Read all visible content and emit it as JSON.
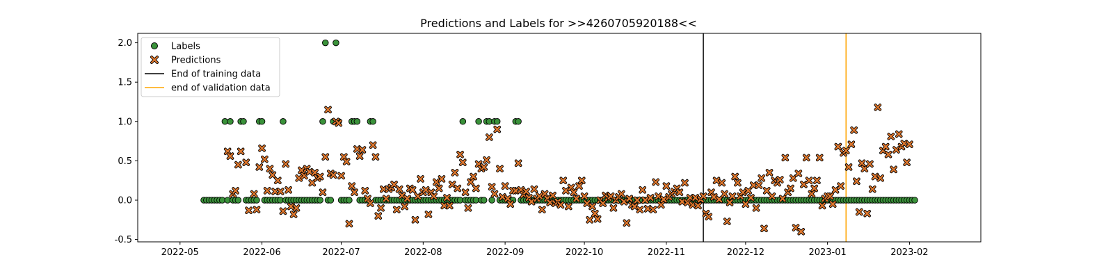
{
  "chart_data": {
    "type": "scatter",
    "title": "Predictions and Labels for >>4260705920188<<",
    "xlabel": "",
    "ylabel": "",
    "x_range": [
      "2022-04-15",
      "2023-02-28"
    ],
    "ylim": [
      -0.53,
      2.12
    ],
    "x_ticks": [
      "2022-05",
      "2022-06",
      "2022-07",
      "2022-08",
      "2022-09",
      "2022-10",
      "2022-11",
      "2022-12",
      "2023-01",
      "2023-02"
    ],
    "y_ticks": [
      -0.5,
      0.0,
      0.5,
      1.0,
      1.5,
      2.0
    ],
    "grid": false,
    "legend_position": "top-left",
    "colors": {
      "labels": "#3a923a",
      "predictions": "#e0782e",
      "training_line": "#000000",
      "validation_line": "#ffa500"
    },
    "legend": [
      {
        "label": "Labels",
        "marker": "circle",
        "color": "#3a923a"
      },
      {
        "label": "Predictions",
        "marker": "x",
        "color": "#e0782e"
      },
      {
        "label": "End of training data",
        "marker": "line",
        "color": "#000000"
      },
      {
        "label": "end of validation data",
        "marker": "line",
        "color": "#ffa500"
      }
    ],
    "vlines": [
      {
        "name": "End of training data",
        "x": "2022-11-15"
      },
      {
        "name": "end of validation data",
        "x": "2023-01-08"
      }
    ],
    "label_start": "2022-05-10",
    "label_end": "2023-02-03",
    "label_one_dates": [
      "2022-05-18",
      "2022-05-20",
      "2022-05-24",
      "2022-05-25",
      "2022-05-31",
      "2022-06-01",
      "2022-06-09",
      "2022-06-24",
      "2022-06-28",
      "2022-06-30",
      "2022-07-05",
      "2022-07-06",
      "2022-07-07",
      "2022-07-12",
      "2022-07-13",
      "2022-08-16",
      "2022-08-22",
      "2022-08-25",
      "2022-08-26",
      "2022-08-28",
      "2022-08-29",
      "2022-09-05",
      "2022-09-06"
    ],
    "label_two_dates": [
      "2022-06-25",
      "2022-06-29"
    ],
    "series": [
      {
        "name": "Predictions",
        "points": [
          [
            "2022-05-19",
            0.62
          ],
          [
            "2022-05-20",
            0.56
          ],
          [
            "2022-05-21",
            0.08
          ],
          [
            "2022-05-22",
            0.12
          ],
          [
            "2022-05-23",
            0.45
          ],
          [
            "2022-05-24",
            0.62
          ],
          [
            "2022-05-26",
            0.48
          ],
          [
            "2022-05-27",
            -0.13
          ],
          [
            "2022-05-29",
            0.08
          ],
          [
            "2022-05-30",
            -0.12
          ],
          [
            "2022-05-31",
            0.42
          ],
          [
            "2022-06-01",
            0.66
          ],
          [
            "2022-06-02",
            0.52
          ],
          [
            "2022-06-03",
            0.12
          ],
          [
            "2022-06-04",
            0.4
          ],
          [
            "2022-06-05",
            0.32
          ],
          [
            "2022-06-06",
            0.11
          ],
          [
            "2022-06-07",
            0.25
          ],
          [
            "2022-06-08",
            0.11
          ],
          [
            "2022-06-09",
            -0.14
          ],
          [
            "2022-06-10",
            0.46
          ],
          [
            "2022-06-11",
            0.13
          ],
          [
            "2022-06-12",
            -0.08
          ],
          [
            "2022-06-13",
            -0.18
          ],
          [
            "2022-06-14",
            -0.1
          ],
          [
            "2022-06-15",
            0.28
          ],
          [
            "2022-06-16",
            0.38
          ],
          [
            "2022-06-17",
            0.31
          ],
          [
            "2022-06-18",
            0.4
          ],
          [
            "2022-06-19",
            0.36
          ],
          [
            "2022-06-20",
            0.22
          ],
          [
            "2022-06-21",
            0.35
          ],
          [
            "2022-06-22",
            0.28
          ],
          [
            "2022-06-23",
            0.3
          ],
          [
            "2022-06-24",
            0.1
          ],
          [
            "2022-06-25",
            0.55
          ],
          [
            "2022-06-26",
            1.15
          ],
          [
            "2022-06-27",
            0.34
          ],
          [
            "2022-06-28",
            0.32
          ],
          [
            "2022-06-29",
            1.0
          ],
          [
            "2022-06-30",
            0.98
          ],
          [
            "2022-07-01",
            0.31
          ],
          [
            "2022-07-02",
            0.55
          ],
          [
            "2022-07-03",
            0.49
          ],
          [
            "2022-07-04",
            -0.3
          ],
          [
            "2022-07-05",
            0.18
          ],
          [
            "2022-07-06",
            0.1
          ],
          [
            "2022-07-07",
            0.65
          ],
          [
            "2022-07-08",
            0.56
          ],
          [
            "2022-07-09",
            0.64
          ],
          [
            "2022-07-10",
            0.12
          ],
          [
            "2022-07-11",
            0.02
          ],
          [
            "2022-07-12",
            -0.04
          ],
          [
            "2022-07-13",
            0.7
          ],
          [
            "2022-07-14",
            0.55
          ],
          [
            "2022-07-15",
            -0.2
          ],
          [
            "2022-07-16",
            -0.1
          ],
          [
            "2022-07-17",
            0.14
          ],
          [
            "2022-07-18",
            0.02
          ],
          [
            "2022-07-19",
            0.14
          ],
          [
            "2022-07-20",
            0.16
          ],
          [
            "2022-07-21",
            0.2
          ],
          [
            "2022-07-22",
            -0.12
          ],
          [
            "2022-07-23",
            0.14
          ],
          [
            "2022-07-24",
            0.06
          ],
          [
            "2022-07-25",
            -0.08
          ],
          [
            "2022-07-26",
            0.02
          ],
          [
            "2022-07-27",
            0.15
          ],
          [
            "2022-07-28",
            0.13
          ],
          [
            "2022-07-29",
            -0.25
          ],
          [
            "2022-07-30",
            0.05
          ],
          [
            "2022-07-31",
            0.27
          ],
          [
            "2022-08-01",
            0.1
          ],
          [
            "2022-08-02",
            0.13
          ],
          [
            "2022-08-03",
            -0.18
          ],
          [
            "2022-08-04",
            0.1
          ],
          [
            "2022-08-05",
            0.05
          ],
          [
            "2022-08-06",
            0.23
          ],
          [
            "2022-08-07",
            0.15
          ],
          [
            "2022-08-08",
            0.27
          ],
          [
            "2022-08-09",
            -0.07
          ],
          [
            "2022-08-10",
            0.03
          ],
          [
            "2022-08-11",
            -0.07
          ],
          [
            "2022-08-12",
            0.2
          ],
          [
            "2022-08-13",
            0.35
          ],
          [
            "2022-08-14",
            0.15
          ],
          [
            "2022-08-15",
            0.58
          ],
          [
            "2022-08-16",
            0.48
          ],
          [
            "2022-08-17",
            0.1
          ],
          [
            "2022-08-18",
            -0.1
          ],
          [
            "2022-08-19",
            0.23
          ],
          [
            "2022-08-20",
            0.3
          ],
          [
            "2022-08-21",
            0.15
          ],
          [
            "2022-08-22",
            0.46
          ],
          [
            "2022-08-23",
            0.4
          ],
          [
            "2022-08-24",
            0.42
          ],
          [
            "2022-08-25",
            0.51
          ],
          [
            "2022-08-26",
            0.8
          ],
          [
            "2022-08-27",
            0.17
          ],
          [
            "2022-08-28",
            0.08
          ],
          [
            "2022-08-29",
            0.9
          ],
          [
            "2022-08-30",
            0.4
          ],
          [
            "2022-08-31",
            0.04
          ],
          [
            "2022-09-01",
            0.18
          ],
          [
            "2022-09-02",
            0.02
          ],
          [
            "2022-09-03",
            -0.05
          ],
          [
            "2022-09-04",
            0.12
          ],
          [
            "2022-09-05",
            0.12
          ],
          [
            "2022-09-06",
            0.47
          ],
          [
            "2022-09-07",
            0.13
          ],
          [
            "2022-09-08",
            0.07
          ],
          [
            "2022-09-09",
            0.11
          ],
          [
            "2022-09-10",
            0.03
          ],
          [
            "2022-09-11",
            -0.02
          ],
          [
            "2022-09-12",
            0.14
          ],
          [
            "2022-09-13",
            0.02
          ],
          [
            "2022-09-14",
            0.05
          ],
          [
            "2022-09-15",
            -0.12
          ],
          [
            "2022-09-16",
            0.08
          ],
          [
            "2022-09-17",
            0.02
          ],
          [
            "2022-09-18",
            -0.03
          ],
          [
            "2022-09-19",
            0.06
          ],
          [
            "2022-09-20",
            -0.04
          ],
          [
            "2022-09-21",
            -0.02
          ],
          [
            "2022-09-22",
            -0.06
          ],
          [
            "2022-09-23",
            0.25
          ],
          [
            "2022-09-24",
            0.12
          ],
          [
            "2022-09-25",
            -0.08
          ],
          [
            "2022-09-26",
            0.16
          ],
          [
            "2022-09-27",
            0.1
          ],
          [
            "2022-09-28",
            0.02
          ],
          [
            "2022-09-29",
            0.18
          ],
          [
            "2022-09-30",
            0.25
          ],
          [
            "2022-10-01",
            0.05
          ],
          [
            "2022-10-02",
            -0.04
          ],
          [
            "2022-10-03",
            -0.25
          ],
          [
            "2022-10-04",
            -0.08
          ],
          [
            "2022-10-05",
            -0.17
          ],
          [
            "2022-10-06",
            -0.24
          ],
          [
            "2022-10-07",
            0.0
          ],
          [
            "2022-10-08",
            -0.04
          ],
          [
            "2022-10-09",
            0.06
          ],
          [
            "2022-10-10",
            0.03
          ],
          [
            "2022-10-11",
            0.05
          ],
          [
            "2022-10-12",
            -0.1
          ],
          [
            "2022-10-13",
            0.0
          ],
          [
            "2022-10-14",
            0.04
          ],
          [
            "2022-10-15",
            0.08
          ],
          [
            "2022-10-16",
            -0.02
          ],
          [
            "2022-10-17",
            -0.29
          ],
          [
            "2022-10-18",
            0.02
          ],
          [
            "2022-10-19",
            -0.06
          ],
          [
            "2022-10-20",
            -0.08
          ],
          [
            "2022-10-21",
            0.0
          ],
          [
            "2022-10-22",
            -0.12
          ],
          [
            "2022-10-23",
            0.13
          ],
          [
            "2022-10-24",
            0.0
          ],
          [
            "2022-10-25",
            -0.11
          ],
          [
            "2022-10-26",
            0.03
          ],
          [
            "2022-10-27",
            -0.12
          ],
          [
            "2022-10-28",
            0.23
          ],
          [
            "2022-10-29",
            0.05
          ],
          [
            "2022-10-30",
            -0.06
          ],
          [
            "2022-10-31",
            0.01
          ],
          [
            "2022-11-01",
            0.18
          ],
          [
            "2022-11-02",
            0.04
          ],
          [
            "2022-11-03",
            0.08
          ],
          [
            "2022-11-04",
            0.11
          ],
          [
            "2022-11-05",
            0.15
          ],
          [
            "2022-11-06",
            0.1
          ],
          [
            "2022-11-07",
            -0.02
          ],
          [
            "2022-11-08",
            0.22
          ],
          [
            "2022-11-09",
            -0.03
          ],
          [
            "2022-11-10",
            0.03
          ],
          [
            "2022-11-11",
            -0.06
          ],
          [
            "2022-11-12",
            0.03
          ],
          [
            "2022-11-13",
            -0.07
          ],
          [
            "2022-11-14",
            0.01
          ],
          [
            "2022-11-15",
            0.05
          ],
          [
            "2022-11-16",
            -0.17
          ],
          [
            "2022-11-17",
            -0.21
          ],
          [
            "2022-11-18",
            0.1
          ],
          [
            "2022-11-19",
            0.04
          ],
          [
            "2022-11-20",
            0.25
          ],
          [
            "2022-11-21",
            0.01
          ],
          [
            "2022-11-22",
            0.22
          ],
          [
            "2022-11-23",
            0.08
          ],
          [
            "2022-11-24",
            -0.27
          ],
          [
            "2022-11-25",
            -0.03
          ],
          [
            "2022-11-26",
            0.05
          ],
          [
            "2022-11-27",
            0.3
          ],
          [
            "2022-11-28",
            0.22
          ],
          [
            "2022-11-29",
            0.05
          ],
          [
            "2022-11-30",
            0.1
          ],
          [
            "2022-12-01",
            -0.05
          ],
          [
            "2022-12-02",
            0.12
          ],
          [
            "2022-12-03",
            0.03
          ],
          [
            "2022-12-04",
            0.19
          ],
          [
            "2022-12-05",
            -0.1
          ],
          [
            "2022-12-06",
            0.19
          ],
          [
            "2022-12-07",
            0.28
          ],
          [
            "2022-12-08",
            -0.36
          ],
          [
            "2022-12-09",
            0.12
          ],
          [
            "2022-12-10",
            0.35
          ],
          [
            "2022-12-11",
            0.05
          ],
          [
            "2022-12-12",
            0.25
          ],
          [
            "2022-12-13",
            0.22
          ],
          [
            "2022-12-14",
            0.26
          ],
          [
            "2022-12-15",
            0.02
          ],
          [
            "2022-12-16",
            0.54
          ],
          [
            "2022-12-17",
            0.1
          ],
          [
            "2022-12-18",
            0.15
          ],
          [
            "2022-12-19",
            0.28
          ],
          [
            "2022-12-20",
            -0.35
          ],
          [
            "2022-12-21",
            0.34
          ],
          [
            "2022-12-22",
            -0.4
          ],
          [
            "2022-12-23",
            0.2
          ],
          [
            "2022-12-24",
            0.54
          ],
          [
            "2022-12-25",
            0.25
          ],
          [
            "2022-12-26",
            0.08
          ],
          [
            "2022-12-27",
            0.15
          ],
          [
            "2022-12-28",
            0.25
          ],
          [
            "2022-12-29",
            0.54
          ],
          [
            "2022-12-30",
            -0.07
          ],
          [
            "2022-12-31",
            0.02
          ],
          [
            "2023-01-01",
            0.05
          ],
          [
            "2023-01-02",
            0.05
          ],
          [
            "2023-01-03",
            -0.05
          ],
          [
            "2023-01-04",
            0.13
          ],
          [
            "2023-01-05",
            0.68
          ],
          [
            "2023-01-06",
            0.18
          ],
          [
            "2023-01-07",
            0.6
          ],
          [
            "2023-01-08",
            0.63
          ],
          [
            "2023-01-09",
            0.42
          ],
          [
            "2023-01-10",
            0.71
          ],
          [
            "2023-01-11",
            0.89
          ],
          [
            "2023-01-12",
            0.24
          ],
          [
            "2023-01-13",
            -0.15
          ],
          [
            "2023-01-14",
            0.47
          ],
          [
            "2023-01-15",
            0.4
          ],
          [
            "2023-01-16",
            -0.17
          ],
          [
            "2023-01-17",
            0.46
          ],
          [
            "2023-01-18",
            0.14
          ],
          [
            "2023-01-19",
            0.3
          ],
          [
            "2023-01-20",
            1.18
          ],
          [
            "2023-01-21",
            0.28
          ],
          [
            "2023-01-22",
            0.63
          ],
          [
            "2023-01-23",
            0.68
          ],
          [
            "2023-01-24",
            0.58
          ],
          [
            "2023-01-25",
            0.81
          ],
          [
            "2023-01-26",
            0.39
          ],
          [
            "2023-01-27",
            0.64
          ],
          [
            "2023-01-28",
            0.84
          ],
          [
            "2023-01-29",
            0.68
          ],
          [
            "2023-01-30",
            0.72
          ],
          [
            "2023-01-31",
            0.48
          ],
          [
            "2023-02-01",
            0.71
          ]
        ]
      }
    ]
  }
}
